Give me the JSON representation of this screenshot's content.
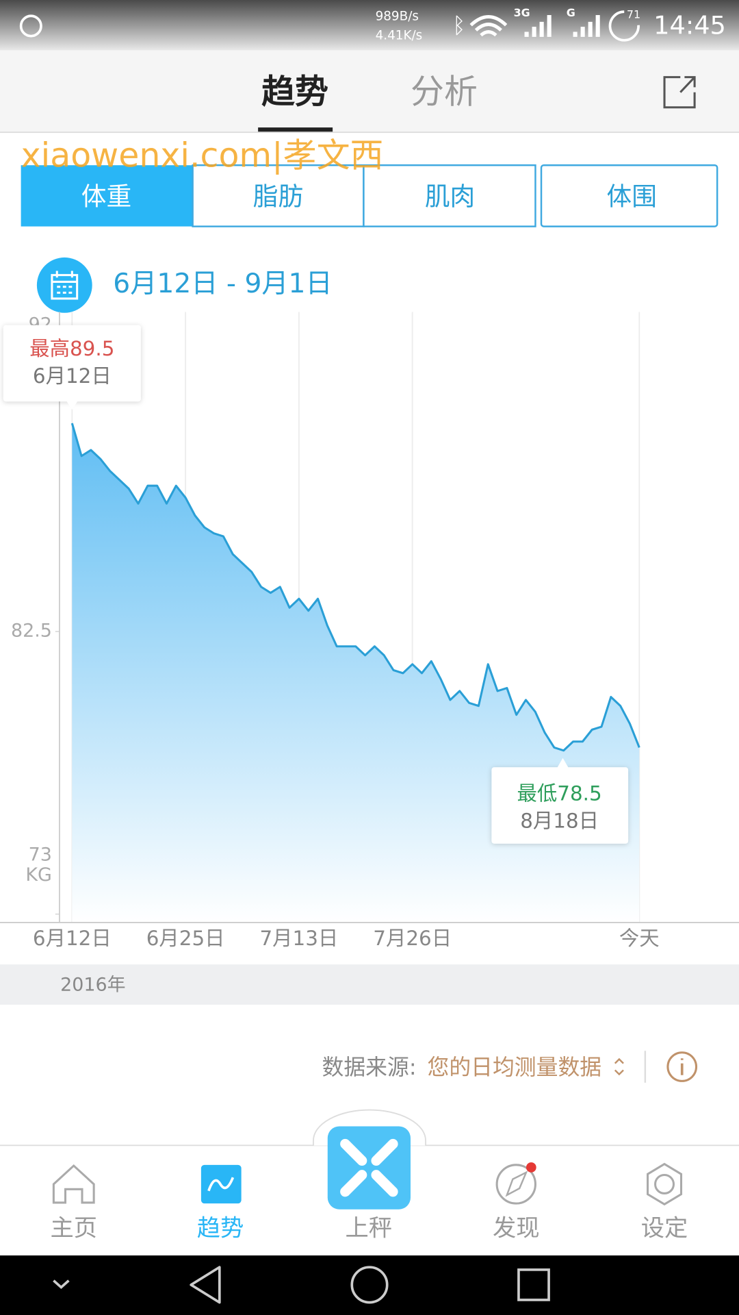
{
  "status_bar": {
    "speed_up": "989B/s",
    "speed_down": "4.41K/s",
    "net1": "3G",
    "net2": "G",
    "battery": "71",
    "time": "14:45"
  },
  "tabs": [
    "趋势",
    "分析"
  ],
  "watermark": "xiaowenxi.com|孝文西",
  "segments": [
    "体重",
    "脂肪",
    "肌肉",
    "体围"
  ],
  "date_range": "6月12日 - 9月1日",
  "chart_data": {
    "type": "area",
    "categories": [
      "6月12日",
      null,
      null,
      null,
      null,
      null,
      null,
      null,
      null,
      null,
      null,
      null,
      "6月25日",
      null,
      null,
      null,
      null,
      null,
      null,
      null,
      null,
      null,
      null,
      null,
      "7月13日",
      null,
      null,
      null,
      null,
      null,
      null,
      null,
      null,
      null,
      null,
      null,
      "7月26日",
      null,
      null,
      null,
      null,
      null,
      null,
      null,
      null,
      null,
      null,
      null,
      null,
      null,
      null,
      null,
      null,
      null,
      null,
      null,
      null,
      null,
      null,
      null,
      "今天"
    ],
    "series": [
      {
        "name": "体重",
        "color": "#2a9fd6",
        "values": [
          89.5,
          88.4,
          88.6,
          88.3,
          87.9,
          87.6,
          87.3,
          86.8,
          87.4,
          87.4,
          86.8,
          87.4,
          87.0,
          86.4,
          86.0,
          85.8,
          85.7,
          85.1,
          84.8,
          84.5,
          84.0,
          83.8,
          84.0,
          83.3,
          83.6,
          83.2,
          83.6,
          82.7,
          82.0,
          82.0,
          82.0,
          81.7,
          82.0,
          81.7,
          81.2,
          81.1,
          81.4,
          81.1,
          81.5,
          80.9,
          80.2,
          80.5,
          80.1,
          80.0,
          81.4,
          80.5,
          80.6,
          79.7,
          80.2,
          79.8,
          79.1,
          78.6,
          78.5,
          78.8,
          78.8,
          79.2,
          79.3,
          80.3,
          80.0,
          79.4,
          78.6
        ]
      }
    ],
    "ylim": [
      73,
      92
    ],
    "yticks": [
      73,
      82.5,
      92
    ],
    "y_unit": "KG",
    "year_label": "2016年",
    "annotations": {
      "max": {
        "label": "最高"
      },
      "min": {
        "label": "最低",
        "date": "8月18日"
      }
    }
  },
  "data_source": {
    "label": "数据来源:",
    "value": "您的日均测量数据"
  },
  "nav": [
    "主页",
    "趋势",
    "上秤",
    "发现",
    "设定"
  ]
}
